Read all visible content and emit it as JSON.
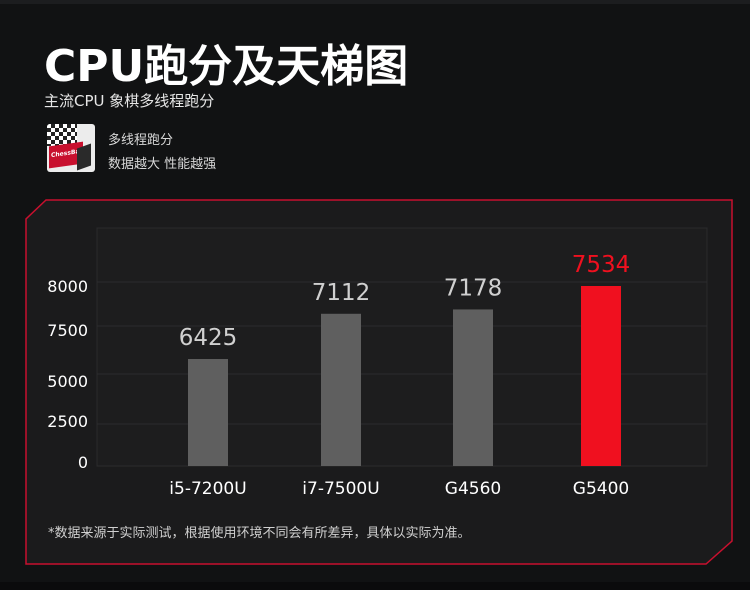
{
  "header": {
    "title": "CPU跑分及天梯图",
    "subtitle": "主流CPU 象棋多线程跑分",
    "logo_text": "ChessBase",
    "note_line1": "多线程跑分",
    "note_line2": "数据越大 性能越强"
  },
  "chart_data": {
    "type": "bar",
    "title": "",
    "xlabel": "",
    "ylabel": "",
    "categories": [
      "i5-7200U",
      "i7-7500U",
      "G4560",
      "G5400"
    ],
    "values": [
      6425,
      7112,
      7178,
      7534
    ],
    "value_labels": [
      "6425",
      "7112",
      "7178",
      "7534"
    ],
    "yticks": [
      "0",
      "2500",
      "5000",
      "7500",
      "8000"
    ],
    "grid": true,
    "legend": "none",
    "colors": {
      "bar": "#5f5f5f",
      "highlight_bar": "#f0101f",
      "value_label": "#d0d0d0",
      "highlight_label": "#f0101f"
    },
    "highlight_index": 3
  },
  "footnote": "*数据来源于实际测试，根据使用环境不同会有所差异，具体以实际为准。",
  "colors": {
    "background": "#111213",
    "panel_border": "#c8102e"
  }
}
